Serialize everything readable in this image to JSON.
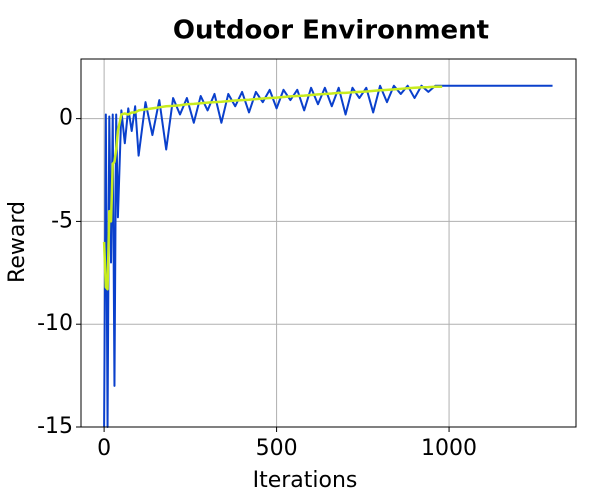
{
  "chart_data": {
    "type": "line",
    "title": "Outdoor Environment",
    "xlabel": "Iterations",
    "ylabel": "Reward",
    "x": [
      0,
      5,
      10,
      15,
      20,
      25,
      30,
      35,
      40,
      50,
      60,
      70,
      80,
      90,
      100,
      120,
      140,
      160,
      180,
      200,
      220,
      240,
      260,
      280,
      300,
      320,
      340,
      360,
      380,
      400,
      420,
      440,
      460,
      480,
      500,
      520,
      540,
      560,
      580,
      600,
      620,
      640,
      660,
      680,
      700,
      720,
      740,
      760,
      780,
      800,
      820,
      840,
      860,
      880,
      900,
      920,
      940,
      960,
      980,
      1000,
      1100,
      1200,
      1300
    ],
    "series": [
      {
        "color": "#0a40cc",
        "values": [
          -15,
          0.2,
          -15,
          0.1,
          -7,
          0.2,
          -13,
          0.2,
          -4.8,
          0.4,
          -1.2,
          0.5,
          -0.6,
          0.6,
          -1.8,
          0.8,
          -0.8,
          0.9,
          -1.5,
          1.0,
          0.2,
          1.0,
          -0.2,
          1.1,
          0.4,
          1.2,
          -0.2,
          1.2,
          0.6,
          1.3,
          0.3,
          1.3,
          0.8,
          1.4,
          0.5,
          1.4,
          0.9,
          1.4,
          0.4,
          1.5,
          0.7,
          1.5,
          0.6,
          1.5,
          0.2,
          1.5,
          1.0,
          1.5,
          0.3,
          1.6,
          0.8,
          1.6,
          1.2,
          1.6,
          1.0,
          1.6,
          1.3,
          1.6,
          1.6,
          1.6,
          1.6,
          1.6,
          1.6
        ]
      },
      {
        "color": "#c8ec1e",
        "values": [
          -6,
          -8.2,
          -8.3,
          -4.5,
          -5,
          -2.2,
          -2.1,
          -1.5,
          -0.6,
          0.2,
          0.25,
          0.2,
          0.3,
          0.3,
          0.4,
          0.45,
          0.5,
          0.55,
          0.6,
          0.62,
          0.65,
          0.7,
          0.72,
          0.75,
          0.78,
          0.8,
          0.82,
          0.85,
          0.88,
          0.9,
          0.92,
          0.95,
          0.98,
          1.0,
          1.02,
          1.05,
          1.08,
          1.1,
          1.12,
          1.15,
          1.18,
          1.2,
          1.22,
          1.25,
          1.25,
          1.28,
          1.3,
          1.32,
          1.35,
          1.38,
          1.4,
          1.42,
          1.45,
          1.48,
          1.5,
          1.52,
          1.53,
          1.55,
          1.55,
          null,
          null,
          null,
          null
        ]
      }
    ],
    "xlim": [
      -67,
      1368
    ],
    "ylim": [
      -15,
      2.9
    ],
    "xticks": [
      0,
      500,
      1000
    ],
    "yticks": [
      0,
      -5,
      -10,
      -15
    ],
    "grid": true
  }
}
